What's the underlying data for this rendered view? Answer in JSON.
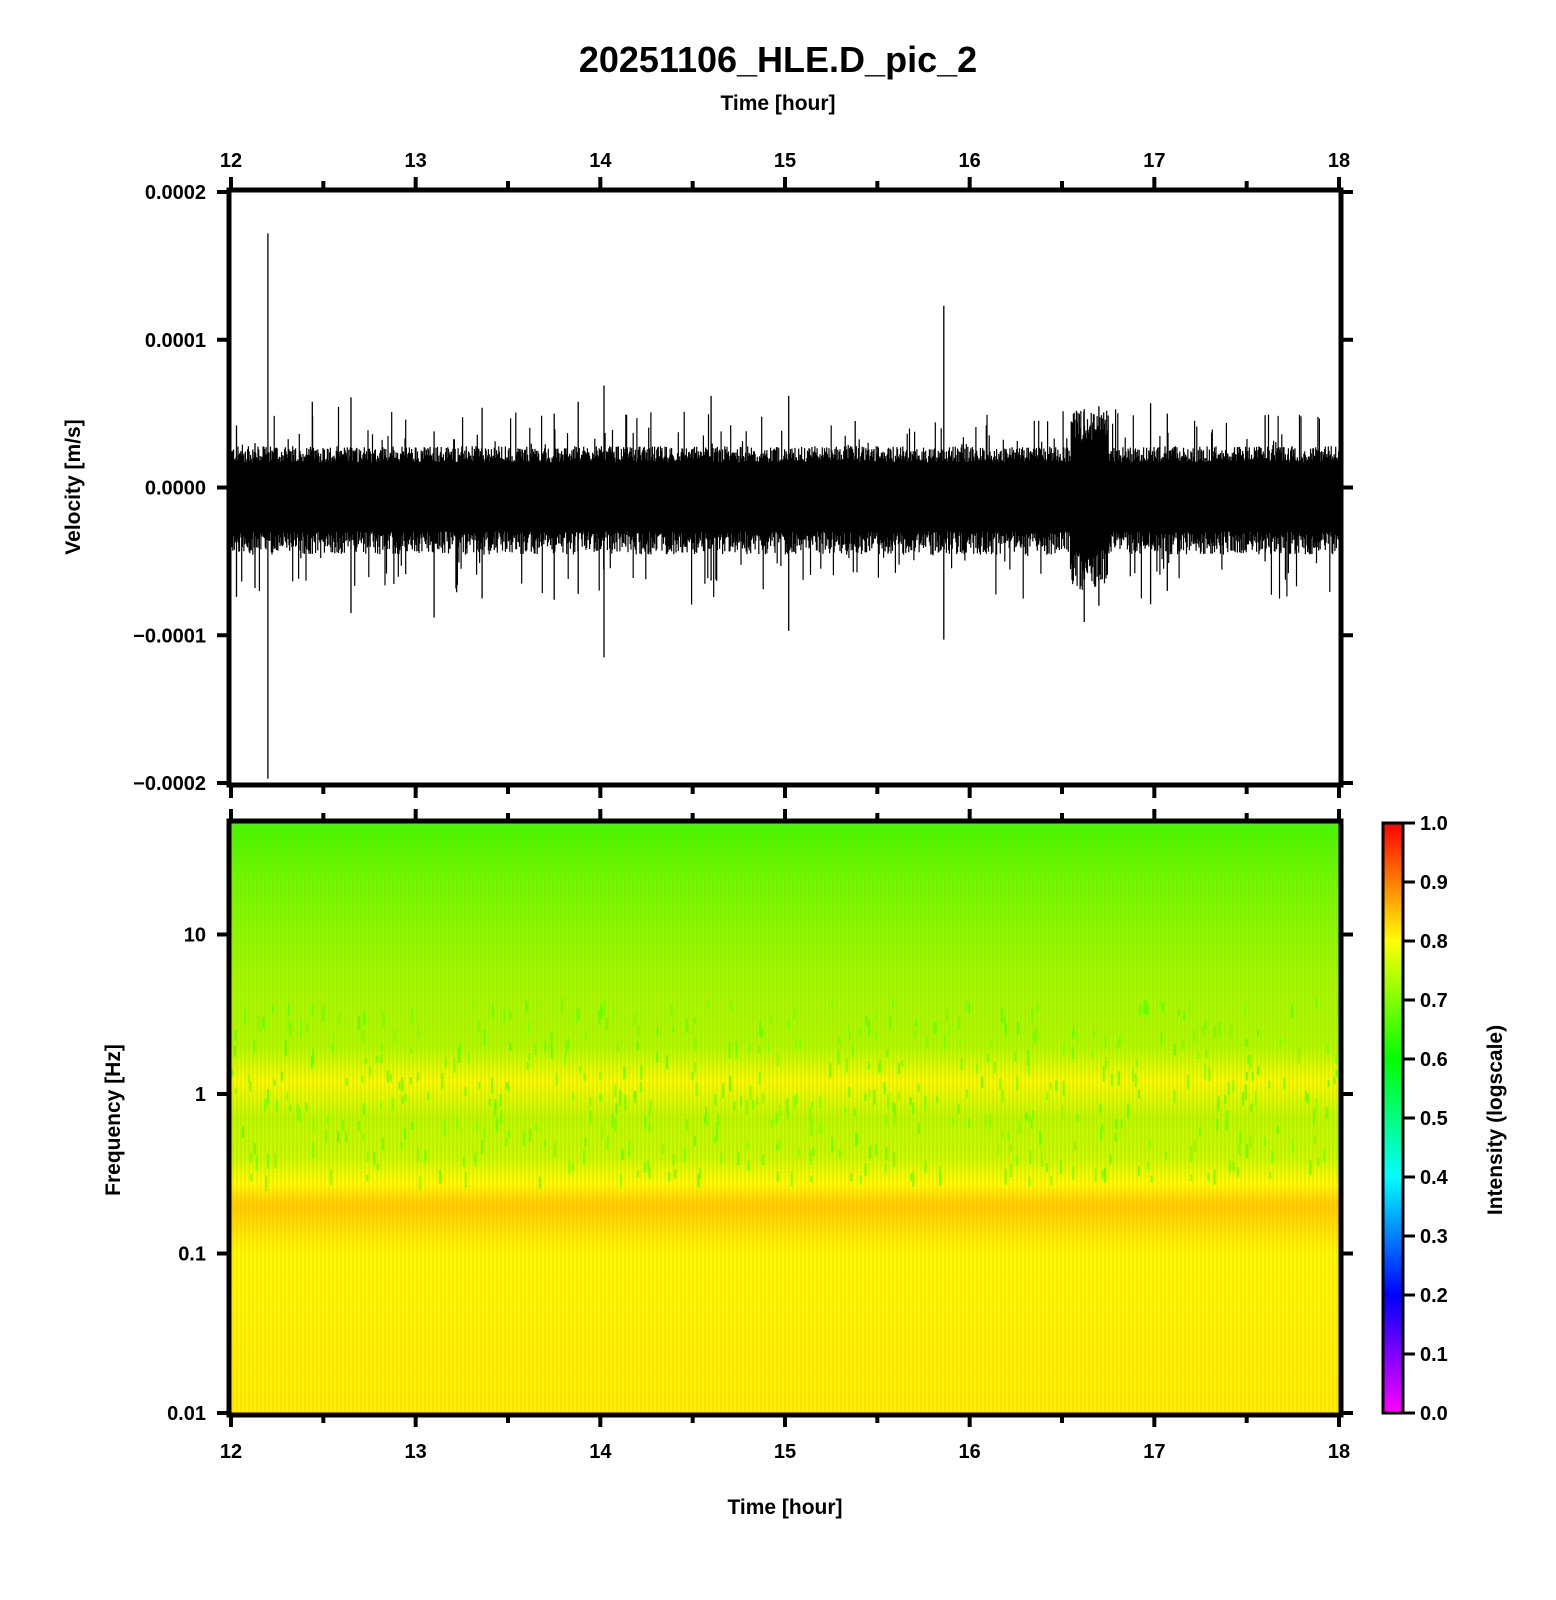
{
  "chart_data": [
    {
      "type": "line",
      "panel": "waveform",
      "title": "20251106_HLE.D_pic_2",
      "xlabel": "Time [hour]",
      "ylabel": "Velocity [m/s]",
      "xlim": [
        12,
        18
      ],
      "ylim": [
        -0.0002,
        0.0002
      ],
      "x_ticks": [
        "12",
        "13",
        "14",
        "15",
        "16",
        "17",
        "18"
      ],
      "y_ticks": [
        "0.0002",
        "0.0001",
        "0.0000",
        "−0.0001",
        "−0.0002"
      ],
      "y_tick_values": [
        0.0002,
        0.0001,
        0.0,
        -0.0001,
        -0.0002
      ],
      "grid": false,
      "line_color": "#000000",
      "background_noise_band": {
        "upper": 2e-05,
        "lower": -3.5e-05
      },
      "spikes": [
        {
          "x": 12.2,
          "top": 0.000172,
          "bottom": -0.000197
        },
        {
          "x": 12.03,
          "top": 4.2e-05,
          "bottom": -7.4e-05
        },
        {
          "x": 12.13,
          "top": 3e-05,
          "bottom": -6.8e-05
        },
        {
          "x": 12.44,
          "top": 5.8e-05,
          "bottom": -4.5e-05
        },
        {
          "x": 12.65,
          "top": 6.1e-05,
          "bottom": -8.5e-05
        },
        {
          "x": 13.1,
          "top": 3.8e-05,
          "bottom": -8.8e-05
        },
        {
          "x": 13.36,
          "top": 5.4e-05,
          "bottom": -7.5e-05
        },
        {
          "x": 13.75,
          "top": 5e-05,
          "bottom": -7.6e-05
        },
        {
          "x": 13.88,
          "top": 5.8e-05,
          "bottom": -7.2e-05
        },
        {
          "x": 14.02,
          "top": 6.9e-05,
          "bottom": -0.000115
        },
        {
          "x": 14.6,
          "top": 6.2e-05,
          "bottom": -6.3e-05
        },
        {
          "x": 15.02,
          "top": 6.2e-05,
          "bottom": -9.7e-05
        },
        {
          "x": 15.38,
          "top": 4.5e-05,
          "bottom": -4e-05
        },
        {
          "x": 15.86,
          "top": 0.000123,
          "bottom": -0.000103
        },
        {
          "x": 16.62,
          "top": 5.3e-05,
          "bottom": -9.1e-05
        },
        {
          "x": 16.7,
          "top": 5.5e-05,
          "bottom": -8e-05
        },
        {
          "x": 16.98,
          "top": 5.7e-05,
          "bottom": -7.9e-05
        },
        {
          "x": 17.07,
          "top": 5e-05,
          "bottom": -7e-05
        },
        {
          "x": 17.6,
          "top": 4.9e-05,
          "bottom": -5e-05
        }
      ],
      "burst": {
        "x_start": 16.55,
        "x_end": 16.75,
        "top": 5.2e-05,
        "bottom": -7e-05
      }
    },
    {
      "type": "heatmap",
      "panel": "spectrogram",
      "xlabel": "Time [hour]",
      "ylabel": "Frequency [Hz]",
      "xlim": [
        12,
        18
      ],
      "ylim": [
        0.01,
        50
      ],
      "y_scale": "log",
      "x_ticks": [
        "12",
        "13",
        "14",
        "15",
        "16",
        "17",
        "18"
      ],
      "y_ticks": [
        "10",
        "1",
        "0.1",
        "0.01"
      ],
      "y_tick_values": [
        10,
        1,
        0.1,
        0.01
      ],
      "colorbar": {
        "label": "Intensity (logscale)",
        "range": [
          0.0,
          1.0
        ],
        "ticks": [
          "1.0",
          "0.9",
          "0.8",
          "0.7",
          "0.6",
          "0.5",
          "0.4",
          "0.3",
          "0.2",
          "0.1",
          "0.0"
        ],
        "tick_values": [
          1.0,
          0.9,
          0.8,
          0.7,
          0.6,
          0.5,
          0.4,
          0.3,
          0.2,
          0.1,
          0.0
        ],
        "colormap": [
          "#ff00ff",
          "#0000ff",
          "#00ffff",
          "#00ff00",
          "#ffff00",
          "#ff0000"
        ]
      },
      "intensity_profile": [
        {
          "freq": 50,
          "intensity": 0.64
        },
        {
          "freq": 20,
          "intensity": 0.68
        },
        {
          "freq": 5,
          "intensity": 0.72
        },
        {
          "freq": 2,
          "intensity": 0.73
        },
        {
          "freq": 1.2,
          "intensity": 0.79
        },
        {
          "freq": 0.7,
          "intensity": 0.74
        },
        {
          "freq": 0.4,
          "intensity": 0.75
        },
        {
          "freq": 0.2,
          "intensity": 0.84
        },
        {
          "freq": 0.1,
          "intensity": 0.8
        },
        {
          "freq": 0.01,
          "intensity": 0.81
        }
      ]
    }
  ]
}
